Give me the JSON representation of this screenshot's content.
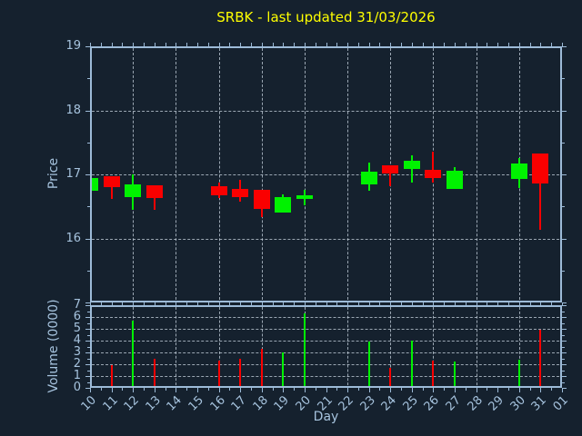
{
  "chart_data": {
    "type": "candlestick",
    "title": "SRBK - last updated 31/03/2026",
    "xlabel": "Day",
    "ylabel_price": "Price",
    "ylabel_volume": "Volume (0000)",
    "x_categories": [
      "10",
      "11",
      "12",
      "13",
      "14",
      "15",
      "16",
      "17",
      "18",
      "19",
      "20",
      "21",
      "22",
      "23",
      "24",
      "25",
      "26",
      "27",
      "28",
      "29",
      "30",
      "31",
      "01"
    ],
    "price_axis": {
      "ticks": [
        19,
        18,
        17,
        16
      ],
      "range": [
        15,
        19
      ],
      "grid_values": [
        18,
        17,
        16
      ]
    },
    "volume_axis": {
      "ticks": [
        7,
        6,
        5,
        4,
        3,
        2,
        1,
        0
      ],
      "range": [
        0,
        7
      ],
      "grid_values": [
        6,
        5,
        4,
        3,
        2,
        1
      ]
    },
    "grid_vertical_days": [
      "12",
      "14",
      "16",
      "18",
      "20",
      "22",
      "24",
      "26",
      "28",
      "30"
    ],
    "colors": {
      "up": "#00f200",
      "down": "#fa0000",
      "background": "#15212e",
      "axis_text": "#a6c3de",
      "spine": "#9dbbd8",
      "grid": "#c8d4e0",
      "title": "#ffff00"
    },
    "legend": "none",
    "grid": "on",
    "series": [
      {
        "day": "10",
        "open": 16.75,
        "high": 16.94,
        "low": 16.75,
        "close": 16.94,
        "volume": 0
      },
      {
        "day": "11",
        "open": 16.97,
        "high": 16.97,
        "low": 16.62,
        "close": 16.8,
        "volume": 1.9
      },
      {
        "day": "12",
        "open": 16.64,
        "high": 17.0,
        "low": 16.44,
        "close": 16.84,
        "volume": 5.7
      },
      {
        "day": "13",
        "open": 16.83,
        "high": 16.83,
        "low": 16.44,
        "close": 16.63,
        "volume": 2.5
      },
      {
        "day": "16",
        "open": 16.81,
        "high": 16.87,
        "low": 16.63,
        "close": 16.67,
        "volume": 2.3
      },
      {
        "day": "17",
        "open": 16.78,
        "high": 16.91,
        "low": 16.58,
        "close": 16.65,
        "volume": 2.5
      },
      {
        "day": "18",
        "open": 16.76,
        "high": 16.76,
        "low": 16.34,
        "close": 16.46,
        "volume": 3.3
      },
      {
        "day": "19",
        "open": 16.41,
        "high": 16.69,
        "low": 16.41,
        "close": 16.64,
        "volume": 3.0
      },
      {
        "day": "20",
        "open": 16.62,
        "high": 16.76,
        "low": 16.52,
        "close": 16.67,
        "volume": 6.3
      },
      {
        "day": "23",
        "open": 16.84,
        "high": 17.18,
        "low": 16.75,
        "close": 17.04,
        "volume": 3.9
      },
      {
        "day": "24",
        "open": 17.14,
        "high": 17.14,
        "low": 16.81,
        "close": 17.01,
        "volume": 1.7
      },
      {
        "day": "25",
        "open": 17.08,
        "high": 17.3,
        "low": 16.87,
        "close": 17.21,
        "volume": 4.0
      },
      {
        "day": "26",
        "open": 17.07,
        "high": 17.35,
        "low": 16.87,
        "close": 16.95,
        "volume": 2.3
      },
      {
        "day": "27",
        "open": 16.78,
        "high": 17.11,
        "low": 16.78,
        "close": 17.05,
        "volume": 2.2
      },
      {
        "day": "30",
        "open": 16.93,
        "high": 17.26,
        "low": 16.79,
        "close": 17.17,
        "volume": 2.4
      },
      {
        "day": "31",
        "open": 17.32,
        "high": 17.32,
        "low": 16.14,
        "close": 16.86,
        "volume": 4.9
      }
    ]
  }
}
